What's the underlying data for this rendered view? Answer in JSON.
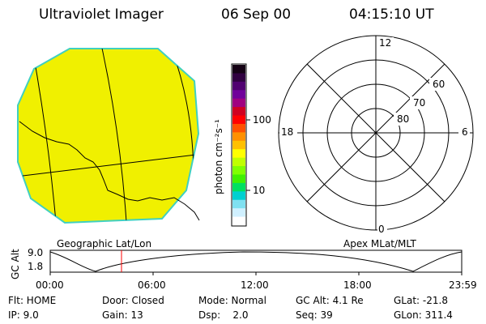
{
  "header": {
    "instrument": "Ultraviolet Imager",
    "date": "06 Sep 00",
    "time": "04:15:10 UT"
  },
  "image_panel": {
    "caption": "Geographic Lat/Lon",
    "disk_color": "#f0f000",
    "limb_color": "#40d0c0"
  },
  "colorbar": {
    "unit_label": "photon cm⁻²s⁻¹",
    "tick_100": "100",
    "tick_10": "10",
    "colors_top_to_bottom": [
      "#140014",
      "#300040",
      "#500070",
      "#70009a",
      "#a00080",
      "#d00020",
      "#ff0000",
      "#ff5000",
      "#ff9000",
      "#ffc000",
      "#ffff00",
      "#c0ff00",
      "#80ff00",
      "#40f000",
      "#00e060",
      "#00d0d0",
      "#80e0f0",
      "#d0f0ff",
      "#ffffff"
    ]
  },
  "polar_plot": {
    "caption": "Apex MLat/MLT",
    "mlt_12": "12",
    "mlt_18": "18",
    "mlt_6": "6",
    "mlt_0": "0",
    "lat_60": "60",
    "lat_70": "70",
    "lat_80": "80"
  },
  "altitude_plot": {
    "ylabel": "GC Alt",
    "ytick_top": "9.0",
    "ytick_bottom": "1.8",
    "x_ticks": [
      "00:00",
      "06:00",
      "12:00",
      "18:00",
      "23:59"
    ],
    "cursor_color": "#ff0000"
  },
  "status": {
    "flt": "Flt: HOME",
    "door": "Door: Closed",
    "mode": "Mode: Normal",
    "gc_alt": "GC Alt: 4.1 Re",
    "glat": "GLat: -21.8",
    "ip": "IP: 9.0",
    "gain": "Gain: 13",
    "dsp": "Dsp:    2.0",
    "seq": "Seq: 39",
    "glon": "GLon: 311.4"
  }
}
